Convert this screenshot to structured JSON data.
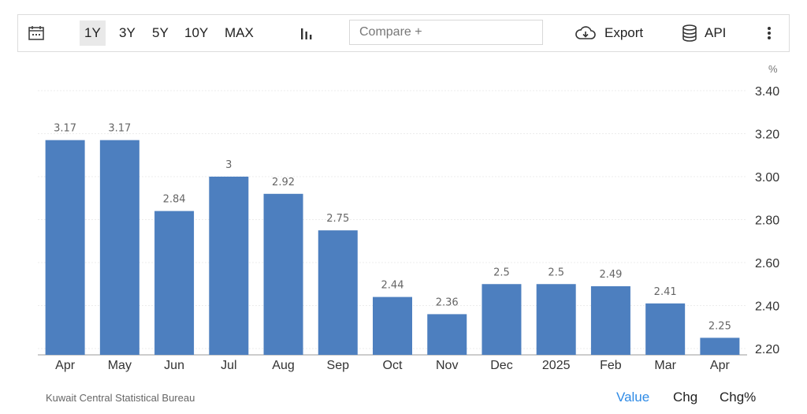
{
  "toolbar": {
    "calendar_icon": "calendar-icon",
    "ranges": [
      "1Y",
      "3Y",
      "5Y",
      "10Y",
      "MAX"
    ],
    "active_range": "1Y",
    "chart_type_icon": "bar-chart-icon",
    "compare_placeholder": "Compare +",
    "export_label": "Export",
    "export_icon": "cloud-download-icon",
    "api_label": "API",
    "api_icon": "database-icon",
    "more_icon": "kebab-menu-icon"
  },
  "unit_label": "%",
  "source": "Kuwait Central Statistical Bureau",
  "value_tabs": [
    "Value",
    "Chg",
    "Chg%"
  ],
  "active_value_tab": "Value",
  "colors": {
    "bar": "#4d7fbf",
    "active_tab": "#2f8be6"
  },
  "chart_data": {
    "type": "bar",
    "categories": [
      "Apr",
      "May",
      "Jun",
      "Jul",
      "Aug",
      "Sep",
      "Oct",
      "Nov",
      "Dec",
      "2025",
      "Feb",
      "Mar",
      "Apr"
    ],
    "values": [
      3.17,
      3.17,
      2.84,
      3,
      2.92,
      2.75,
      2.44,
      2.36,
      2.5,
      2.5,
      2.49,
      2.41,
      2.25
    ],
    "value_labels": [
      "3.17",
      "3.17",
      "2.84",
      "3",
      "2.92",
      "2.75",
      "2.44",
      "2.36",
      "2.5",
      "2.5",
      "2.49",
      "2.41",
      "2.25"
    ],
    "ylim": [
      2.2,
      3.4
    ],
    "yticks": [
      "3.40",
      "3.20",
      "3.00",
      "2.80",
      "2.60",
      "2.40",
      "2.20"
    ],
    "ytick_values": [
      3.4,
      3.2,
      3.0,
      2.8,
      2.6,
      2.4,
      2.2
    ],
    "y_axis_position": "right",
    "grid": true,
    "legend": "none"
  }
}
